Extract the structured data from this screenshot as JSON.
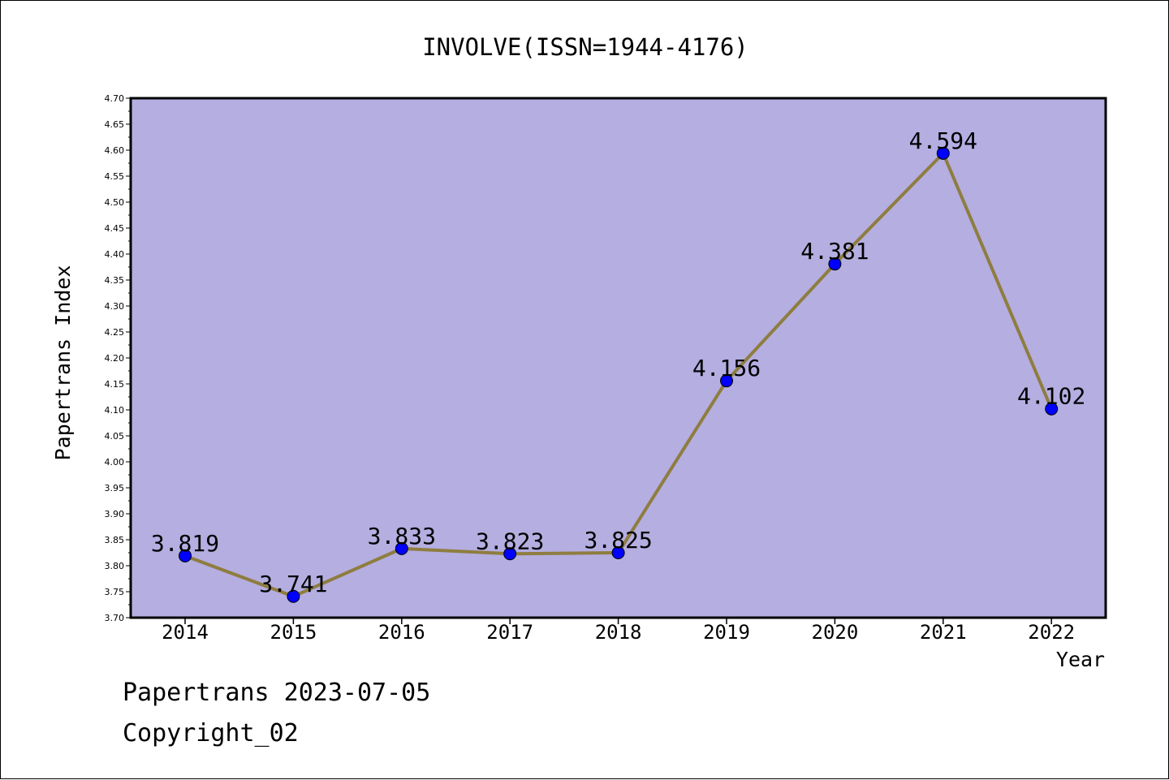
{
  "chart_data": {
    "type": "line",
    "title": "INVOLVE(ISSN=1944-4176)",
    "xlabel": "Year",
    "ylabel": "Papertrans Index",
    "categories": [
      "2014",
      "2015",
      "2016",
      "2017",
      "2018",
      "2019",
      "2020",
      "2021",
      "2022"
    ],
    "series": [
      {
        "values": [
          3.819,
          3.741,
          3.833,
          3.823,
          3.825,
          4.156,
          4.381,
          4.594,
          4.102
        ],
        "labels": [
          "3.819",
          "3.741",
          "3.833",
          "3.823",
          "3.825",
          "4.156",
          "4.381",
          "4.594",
          "4.102"
        ]
      }
    ],
    "ylim": [
      3.7,
      4.7
    ],
    "yticks": [
      "3.70",
      "3.75",
      "3.80",
      "3.85",
      "3.90",
      "3.95",
      "4.00",
      "4.05",
      "4.10",
      "4.15",
      "4.20",
      "4.25",
      "4.30",
      "4.35",
      "4.40",
      "4.45",
      "4.50",
      "4.55",
      "4.60",
      "4.65",
      "4.70"
    ],
    "grid": false,
    "legend": "none",
    "colors": {
      "plot_background": "#b4aee1",
      "line": "#8e7d3f",
      "marker": "#0000ff"
    }
  },
  "footer": {
    "line1": "Papertrans 2023-07-05",
    "line2": "Copyright_02"
  }
}
